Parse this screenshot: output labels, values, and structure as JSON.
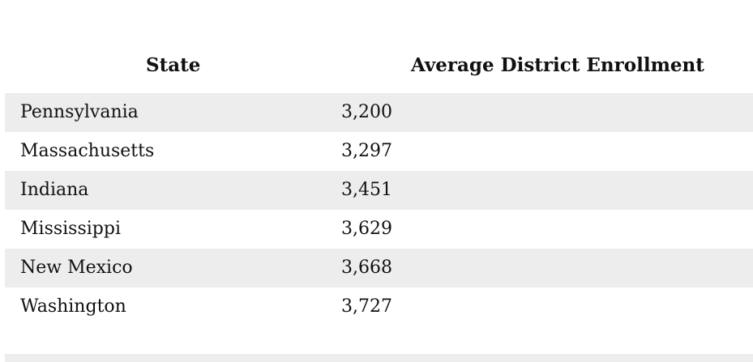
{
  "table": {
    "headers": {
      "state": "State",
      "enrollment": "Average District Enrollment"
    },
    "rows": [
      {
        "state": "Pennsylvania",
        "value": "3,200"
      },
      {
        "state": "Massachusetts",
        "value": "3,297"
      },
      {
        "state": "Indiana",
        "value": "3,451"
      },
      {
        "state": "Mississippi",
        "value": "3,629"
      },
      {
        "state": "New Mexico",
        "value": "3,668"
      },
      {
        "state": "Washington",
        "value": "3,727"
      }
    ],
    "colors": {
      "stripe": "#ededed",
      "text": "#111111"
    }
  }
}
